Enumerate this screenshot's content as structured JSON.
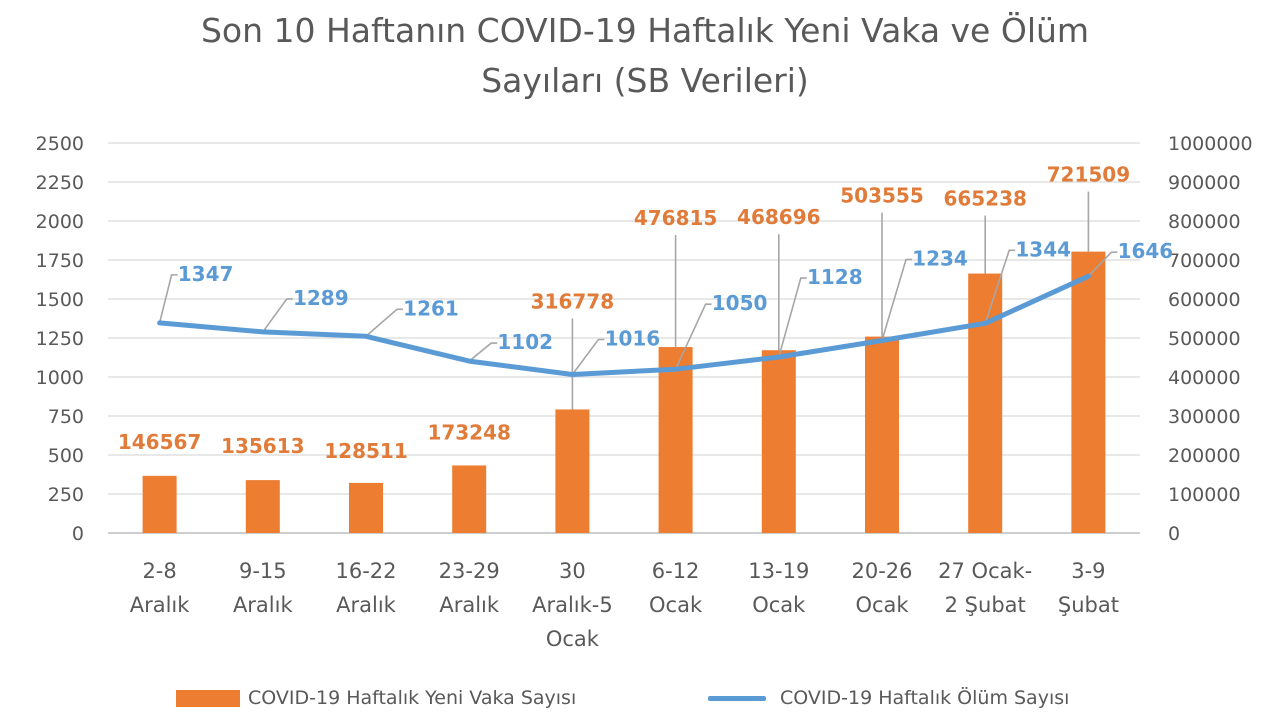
{
  "chart_data": {
    "type": "bar",
    "title_line1": "Son 10 Haftanın COVID-19 Haftalık Yeni Vaka ve Ölüm",
    "title_line2": "Sayıları (SB Verileri)",
    "categories": [
      [
        "2-8",
        "Aralık"
      ],
      [
        "9-15",
        "Aralık"
      ],
      [
        "16-22",
        "Aralık"
      ],
      [
        "23-29",
        "Aralık"
      ],
      [
        "30",
        "Aralık-5",
        "Ocak"
      ],
      [
        "6-12",
        "Ocak"
      ],
      [
        "13-19",
        "Ocak"
      ],
      [
        "20-26",
        "Ocak"
      ],
      [
        "27 Ocak-",
        "2 Şubat"
      ],
      [
        "3-9",
        "Şubat"
      ]
    ],
    "series": [
      {
        "name": "COVID-19 Haftalık Yeni Vaka Sayısı",
        "type": "bar",
        "axis": "right",
        "color": "#ED7D31",
        "values": [
          146567,
          135613,
          128511,
          173248,
          316778,
          476815,
          468696,
          503555,
          665238,
          721509
        ]
      },
      {
        "name": "COVID-19 Haftalık Ölüm Sayısı",
        "type": "line",
        "axis": "left",
        "color": "#5B9BD5",
        "values": [
          1347,
          1289,
          1261,
          1102,
          1016,
          1050,
          1128,
          1234,
          1344,
          1646
        ]
      }
    ],
    "y_left": {
      "min": 0,
      "max": 2500,
      "ticks": [
        0,
        250,
        500,
        750,
        1000,
        1250,
        1500,
        1750,
        2000,
        2250,
        2500
      ]
    },
    "y_right": {
      "min": 0,
      "max": 1000000,
      "ticks": [
        0,
        100000,
        200000,
        300000,
        400000,
        500000,
        600000,
        700000,
        800000,
        900000,
        1000000
      ]
    },
    "grid": true,
    "legend_position": "bottom",
    "label_color_bar": "#E07B39",
    "label_color_line": "#5B9BD5",
    "axis_text_color": "#595959",
    "gridline_color": "#D9D9D9",
    "leader_color": "#A6A6A6"
  }
}
